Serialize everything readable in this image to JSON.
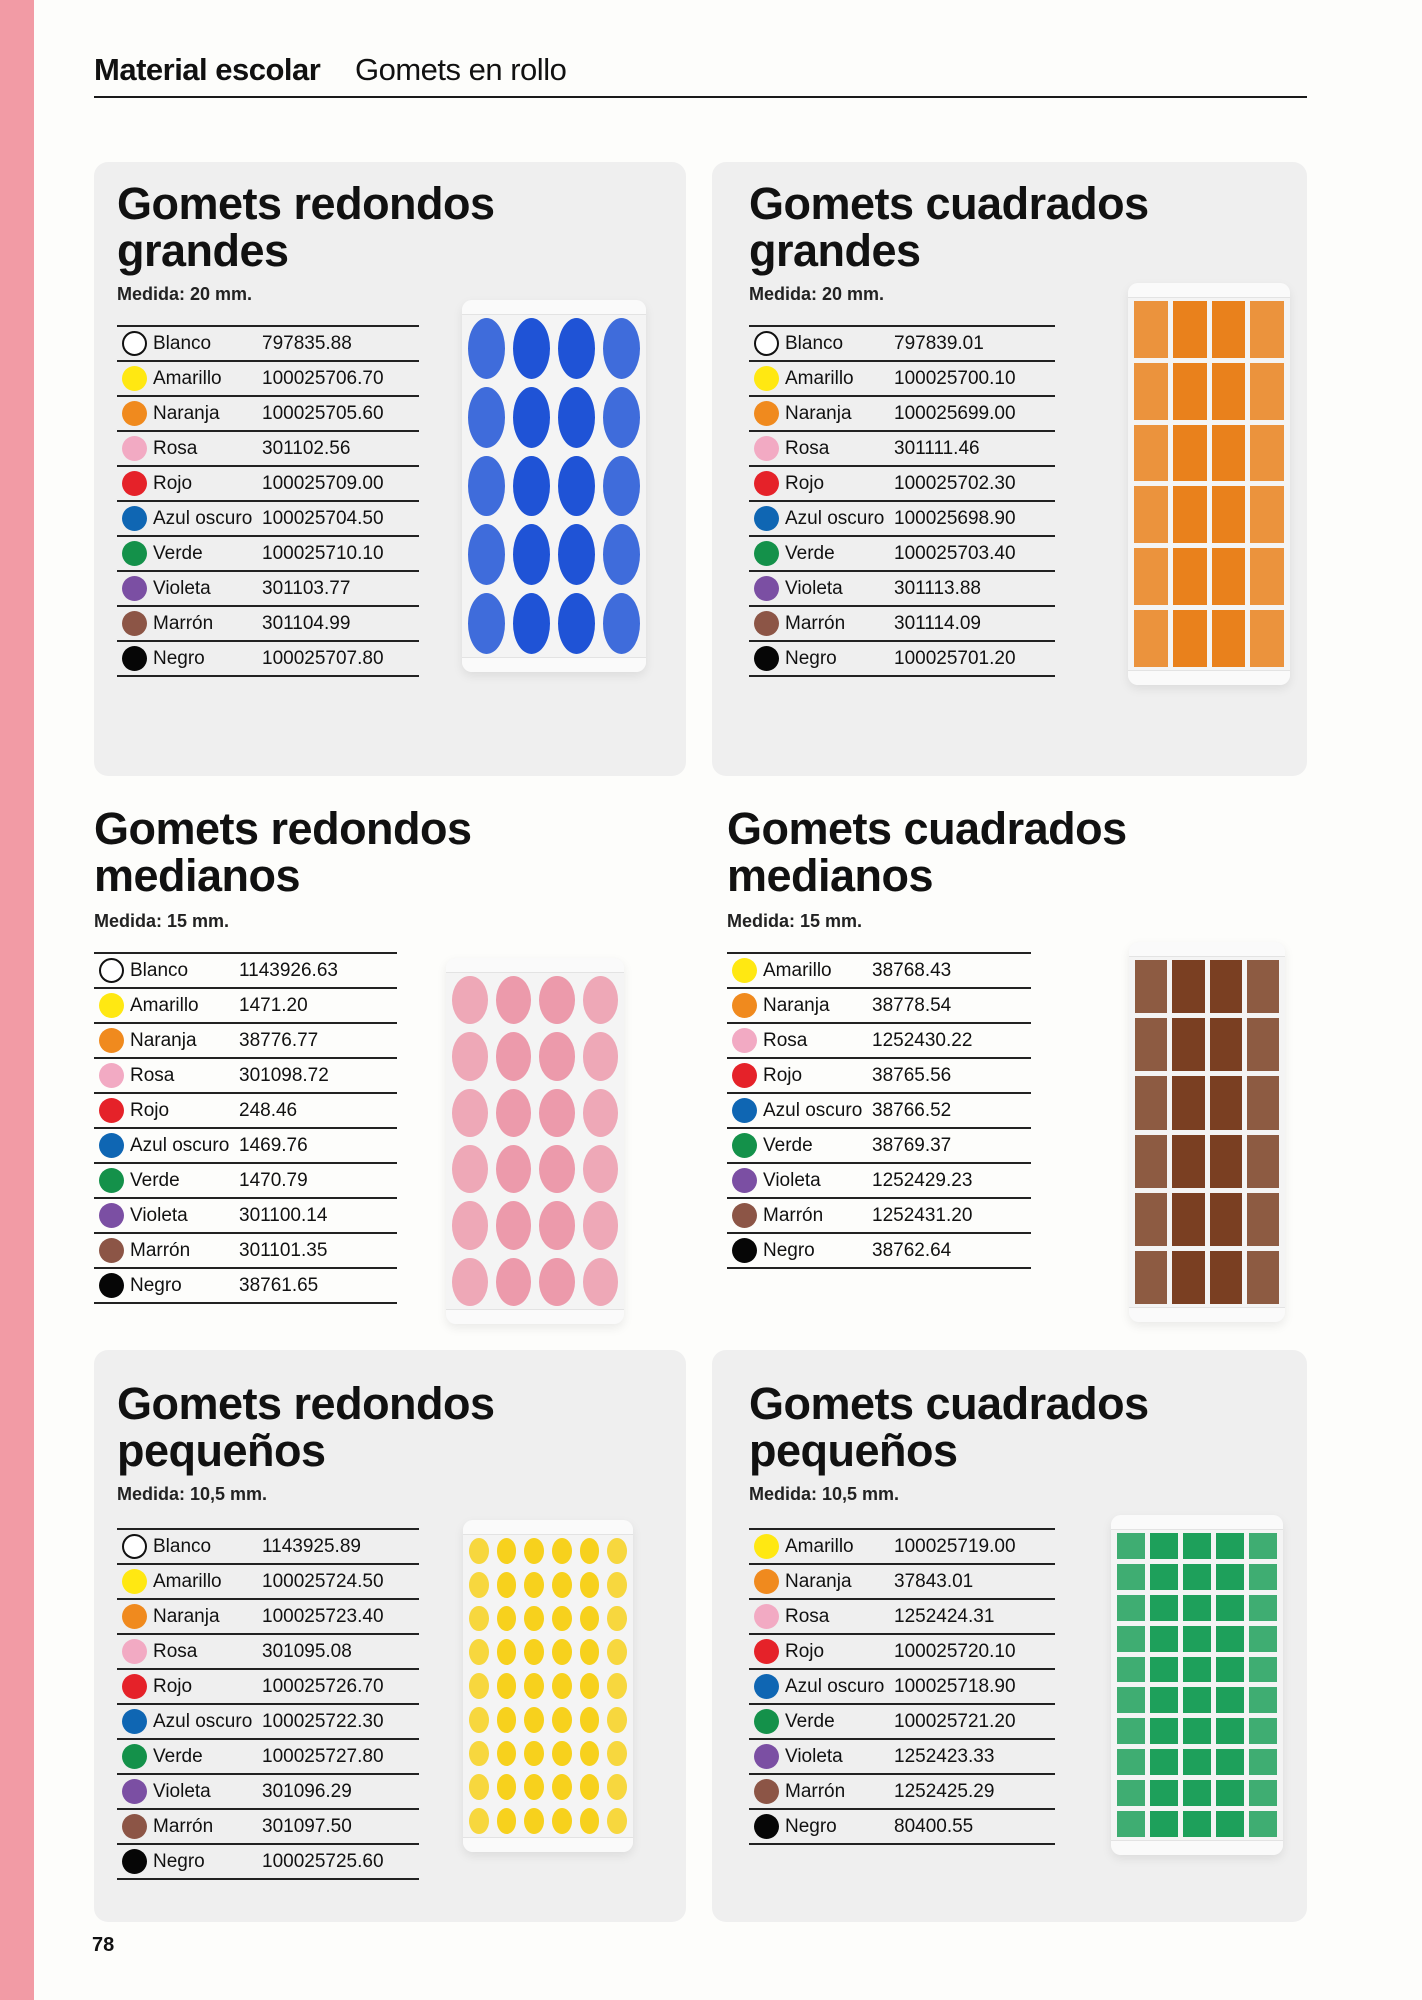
{
  "header": {
    "section": "Material escolar",
    "subsection": "Gomets en rollo"
  },
  "page_number": "78",
  "colors": {
    "Blanco": "#ffffff",
    "Amarillo": "#ffe812",
    "Naranja": "#f08a1e",
    "Rosa": "#f2aac3",
    "Rojo": "#e52229",
    "Azul oscuro": "#0f66b3",
    "Verde": "#14914a",
    "Violeta": "#7b4fa3",
    "Marrón": "#8c5546",
    "Negro": "#060606",
    "pink_strip": "#f29ba5",
    "card_bg": "#efefef"
  },
  "products": [
    {
      "title": "Gomets redondos\ngrandes",
      "measure": "Medida: 20 mm.",
      "roll_color": "#1f53d6",
      "shape": "round",
      "rows": [
        {
          "color": "Blanco",
          "code": "797835.88"
        },
        {
          "color": "Amarillo",
          "code": "100025706.70"
        },
        {
          "color": "Naranja",
          "code": "100025705.60"
        },
        {
          "color": "Rosa",
          "code": "301102.56"
        },
        {
          "color": "Rojo",
          "code": "100025709.00"
        },
        {
          "color": "Azul oscuro",
          "code": "100025704.50"
        },
        {
          "color": "Verde",
          "code": "100025710.10"
        },
        {
          "color": "Violeta",
          "code": "301103.77"
        },
        {
          "color": "Marrón",
          "code": "301104.99"
        },
        {
          "color": "Negro",
          "code": "100025707.80"
        }
      ]
    },
    {
      "title": "Gomets cuadrados\ngrandes",
      "measure": "Medida: 20 mm.",
      "roll_color": "#e9811c",
      "shape": "square",
      "rows": [
        {
          "color": "Blanco",
          "code": "797839.01"
        },
        {
          "color": "Amarillo",
          "code": "100025700.10"
        },
        {
          "color": "Naranja",
          "code": "100025699.00"
        },
        {
          "color": "Rosa",
          "code": "301111.46"
        },
        {
          "color": "Rojo",
          "code": "100025702.30"
        },
        {
          "color": "Azul oscuro",
          "code": "100025698.90"
        },
        {
          "color": "Verde",
          "code": "100025703.40"
        },
        {
          "color": "Violeta",
          "code": "301113.88"
        },
        {
          "color": "Marrón",
          "code": "301114.09"
        },
        {
          "color": "Negro",
          "code": "100025701.20"
        }
      ]
    },
    {
      "title": "Gomets redondos\nmedianos",
      "measure": "Medida: 15 mm.",
      "roll_color": "#ec9aab",
      "shape": "round",
      "rows": [
        {
          "color": "Blanco",
          "code": "1143926.63"
        },
        {
          "color": "Amarillo",
          "code": "1471.20"
        },
        {
          "color": "Naranja",
          "code": "38776.77"
        },
        {
          "color": "Rosa",
          "code": "301098.72"
        },
        {
          "color": "Rojo",
          "code": "248.46"
        },
        {
          "color": "Azul oscuro",
          "code": "1469.76"
        },
        {
          "color": "Verde",
          "code": "1470.79"
        },
        {
          "color": "Violeta",
          "code": "301100.14"
        },
        {
          "color": "Marrón",
          "code": "301101.35"
        },
        {
          "color": "Negro",
          "code": "38761.65"
        }
      ]
    },
    {
      "title": "Gomets cuadrados\nmedianos",
      "measure": "Medida: 15 mm.",
      "roll_color": "#7a3f22",
      "shape": "square",
      "rows": [
        {
          "color": "Amarillo",
          "code": "38768.43"
        },
        {
          "color": "Naranja",
          "code": "38778.54"
        },
        {
          "color": "Rosa",
          "code": "1252430.22"
        },
        {
          "color": "Rojo",
          "code": "38765.56"
        },
        {
          "color": "Azul oscuro",
          "code": "38766.52"
        },
        {
          "color": "Verde",
          "code": "38769.37"
        },
        {
          "color": "Violeta",
          "code": "1252429.23"
        },
        {
          "color": "Marrón",
          "code": "1252431.20"
        },
        {
          "color": "Negro",
          "code": "38762.64"
        }
      ]
    },
    {
      "title": "Gomets redondos\npequeños",
      "measure": "Medida: 10,5 mm.",
      "roll_color": "#f7d11d",
      "shape": "round",
      "rows": [
        {
          "color": "Blanco",
          "code": "1143925.89"
        },
        {
          "color": "Amarillo",
          "code": "100025724.50"
        },
        {
          "color": "Naranja",
          "code": "100025723.40"
        },
        {
          "color": "Rosa",
          "code": "301095.08"
        },
        {
          "color": "Rojo",
          "code": "100025726.70"
        },
        {
          "color": "Azul oscuro",
          "code": "100025722.30"
        },
        {
          "color": "Verde",
          "code": "100025727.80"
        },
        {
          "color": "Violeta",
          "code": "301096.29"
        },
        {
          "color": "Marrón",
          "code": "301097.50"
        },
        {
          "color": "Negro",
          "code": "100025725.60"
        }
      ]
    },
    {
      "title": "Gomets cuadrados\npequeños",
      "measure": "Medida: 10,5 mm.",
      "roll_color": "#1ea05b",
      "shape": "square",
      "rows": [
        {
          "color": "Amarillo",
          "code": "100025719.00"
        },
        {
          "color": "Naranja",
          "code": "37843.01"
        },
        {
          "color": "Rosa",
          "code": "1252424.31"
        },
        {
          "color": "Rojo",
          "code": "100025720.10"
        },
        {
          "color": "Azul oscuro",
          "code": "100025718.90"
        },
        {
          "color": "Verde",
          "code": "100025721.20"
        },
        {
          "color": "Violeta",
          "code": "1252423.33"
        },
        {
          "color": "Marrón",
          "code": "1252425.29"
        },
        {
          "color": "Negro",
          "code": "80400.55"
        }
      ]
    }
  ]
}
